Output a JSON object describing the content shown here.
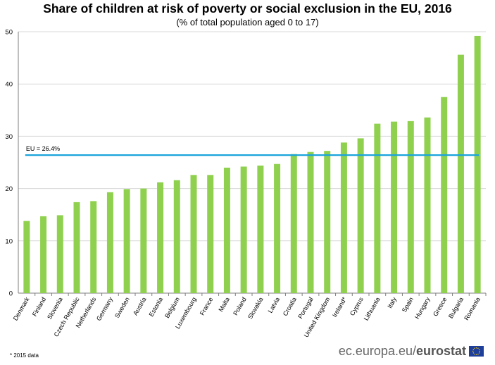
{
  "header": {
    "title": "Share of children at risk of poverty or social exclusion in the EU, 2016",
    "subtitle": "(% of total population  aged 0 to 17)"
  },
  "footer": {
    "footnote": "* 2015 data",
    "brand_light": "ec.europa.eu/",
    "brand_bold": "eurostat",
    "logo_icon": "eu-flag-icon"
  },
  "colors": {
    "bar": "#8fd14f",
    "eu_line": "#1aa3db",
    "grid": "#d9d9d9",
    "axis": "#7f7f7f",
    "flag_blue": "#1d3e9a",
    "flag_star": "#ffcc00"
  },
  "chart_data": {
    "type": "bar",
    "title": "Share of children at risk of poverty or social exclusion in the EU, 2016",
    "subtitle": "(% of total population  aged 0 to 17)",
    "xlabel": "",
    "ylabel": "",
    "ylim": [
      0,
      50
    ],
    "yticks": [
      0,
      10,
      20,
      30,
      40,
      50
    ],
    "grid": true,
    "categories": [
      "Denmark",
      "Finland",
      "Slovenia",
      "Czech Republic",
      "Netherlands",
      "Germany",
      "Sweden",
      "Austria",
      "Estonia",
      "Belgium",
      "Luxembourg",
      "France",
      "Malta",
      "Poland",
      "Slovakia",
      "Latvia",
      "Croatia",
      "Portugal",
      "United Kingdom",
      "Ireland*",
      "Cyprus",
      "Lithuania",
      "Italy",
      "Spain",
      "Hungary",
      "Greece",
      "Bulgaria",
      "Romania"
    ],
    "values": [
      13.8,
      14.7,
      14.9,
      17.4,
      17.6,
      19.3,
      19.9,
      20.0,
      21.2,
      21.6,
      22.6,
      22.6,
      24.0,
      24.2,
      24.4,
      24.7,
      26.6,
      27.0,
      27.2,
      28.8,
      29.6,
      32.4,
      32.8,
      32.9,
      33.6,
      37.5,
      45.6,
      49.2
    ],
    "reference_line": {
      "label": "EU = 26.4%",
      "value": 26.4
    }
  }
}
